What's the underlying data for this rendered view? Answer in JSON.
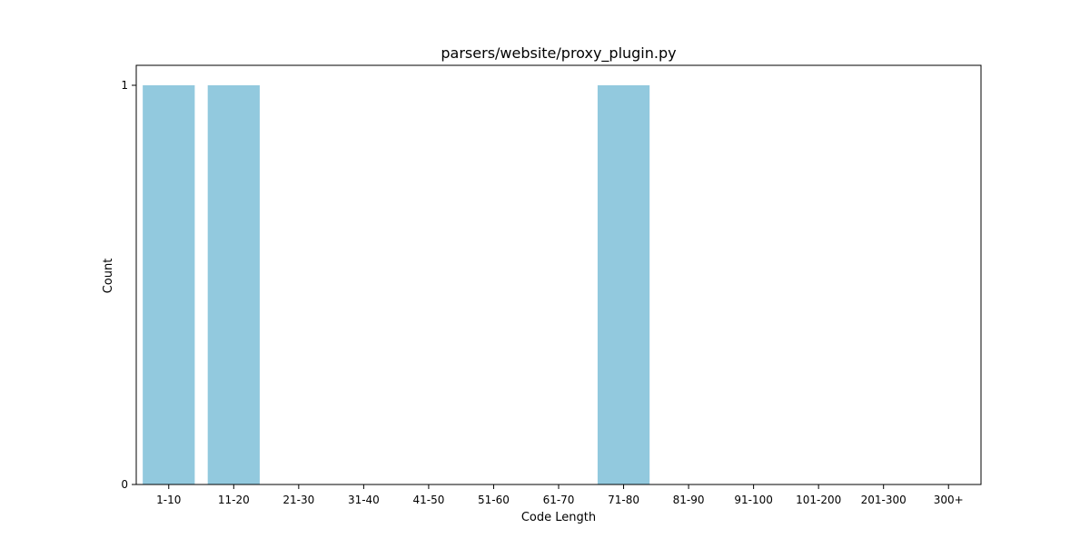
{
  "chart_data": {
    "type": "bar",
    "title": "parsers/website/proxy_plugin.py",
    "xlabel": "Code Length",
    "ylabel": "Count",
    "categories": [
      "1-10",
      "11-20",
      "21-30",
      "31-40",
      "41-50",
      "51-60",
      "61-70",
      "71-80",
      "81-90",
      "91-100",
      "101-200",
      "201-300",
      "300+"
    ],
    "values": [
      1,
      1,
      0,
      0,
      0,
      0,
      0,
      1,
      0,
      0,
      0,
      0,
      0
    ],
    "ylim": [
      0,
      1.05
    ],
    "yticks": [
      0,
      1
    ],
    "grid": false,
    "legend": "none",
    "bar_color": "#92c9de"
  }
}
